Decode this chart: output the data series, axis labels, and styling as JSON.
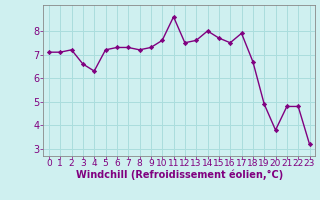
{
  "x": [
    0,
    1,
    2,
    3,
    4,
    5,
    6,
    7,
    8,
    9,
    10,
    11,
    12,
    13,
    14,
    15,
    16,
    17,
    18,
    19,
    20,
    21,
    22,
    23
  ],
  "y": [
    7.1,
    7.1,
    7.2,
    6.6,
    6.3,
    7.2,
    7.3,
    7.3,
    7.2,
    7.3,
    7.6,
    8.6,
    7.5,
    7.6,
    8.0,
    7.7,
    7.5,
    7.9,
    6.7,
    4.9,
    3.8,
    4.8,
    4.8,
    3.2
  ],
  "line_color": "#800080",
  "marker": "D",
  "marker_size": 2.2,
  "bg_color": "#cff0f0",
  "grid_color": "#aadddd",
  "xlabel": "Windchill (Refroidissement éolien,°C)",
  "xlabel_color": "#800080",
  "tick_color": "#800080",
  "ylim": [
    2.7,
    9.1
  ],
  "xlim": [
    -0.5,
    23.5
  ],
  "yticks": [
    3,
    4,
    5,
    6,
    7,
    8
  ],
  "xticks": [
    0,
    1,
    2,
    3,
    4,
    5,
    6,
    7,
    8,
    9,
    10,
    11,
    12,
    13,
    14,
    15,
    16,
    17,
    18,
    19,
    20,
    21,
    22,
    23
  ],
  "linewidth": 1.0,
  "tick_fontsize": 6.5,
  "label_fontsize": 7.0
}
